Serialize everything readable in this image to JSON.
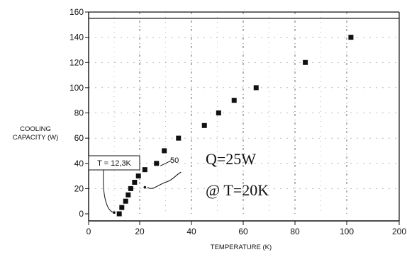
{
  "chart_data": {
    "type": "scatter",
    "xlabel": "TEMPERATURE (K)",
    "ylabel_lines": [
      "COOLING",
      "CAPACITY (W)"
    ],
    "xlim": [
      0,
      200
    ],
    "ylim": [
      0,
      160
    ],
    "x_ticks": [
      0,
      20,
      40,
      60,
      80,
      100,
      200
    ],
    "y_ticks": [
      0,
      20,
      40,
      60,
      80,
      100,
      120,
      140,
      160
    ],
    "x_tick_labels": [
      "0",
      "20",
      "40",
      "60",
      "80",
      "100",
      "200"
    ],
    "y_tick_labels": [
      "0",
      "20",
      "40",
      "60",
      "80",
      "100",
      "120",
      "140",
      "160"
    ],
    "grid": true,
    "points": [
      {
        "x": 12.0,
        "y": 0
      },
      {
        "x": 13.0,
        "y": 5
      },
      {
        "x": 14.5,
        "y": 10
      },
      {
        "x": 15.5,
        "y": 15
      },
      {
        "x": 16.5,
        "y": 20
      },
      {
        "x": 18.0,
        "y": 25
      },
      {
        "x": 19.5,
        "y": 30
      },
      {
        "x": 22.0,
        "y": 35
      },
      {
        "x": 26.5,
        "y": 40
      },
      {
        "x": 29.5,
        "y": 50
      },
      {
        "x": 35.0,
        "y": 60
      },
      {
        "x": 45.0,
        "y": 70
      },
      {
        "x": 50.5,
        "y": 80
      },
      {
        "x": 56.5,
        "y": 90
      },
      {
        "x": 65.0,
        "y": 100
      },
      {
        "x": 84.0,
        "y": 120
      },
      {
        "x": 108.0,
        "y": 140
      }
    ],
    "reference_line_y": 155,
    "annotations": {
      "t_label": "T = 12,3K",
      "fifty_label": "50",
      "q_label": "Q=25W",
      "at_label": "@ T=20K"
    }
  }
}
